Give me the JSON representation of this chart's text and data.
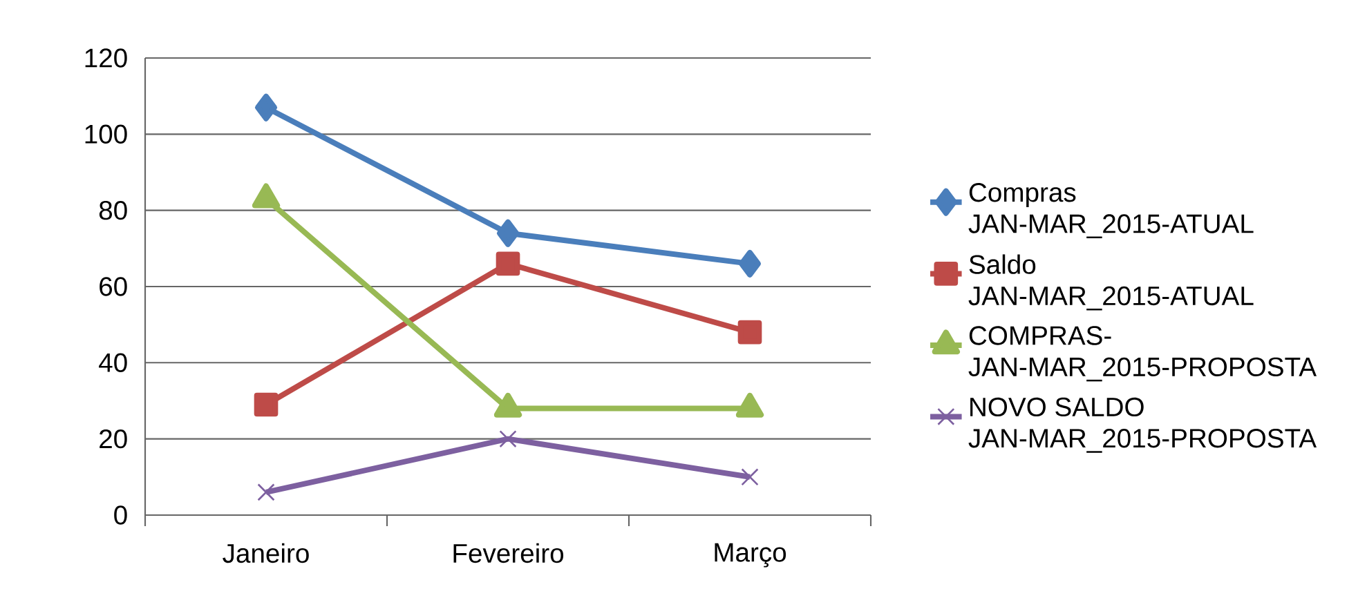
{
  "chart_data": {
    "type": "line",
    "categories": [
      "Janeiro",
      "Fevereiro",
      "Março"
    ],
    "series": [
      {
        "name": "Compras JAN-MAR_2015-ATUAL",
        "color": "#4a7ebb",
        "marker": "diamond",
        "values": [
          107,
          74,
          66
        ]
      },
      {
        "name": "Saldo JAN-MAR_2015-ATUAL",
        "color": "#be4b48",
        "marker": "square",
        "values": [
          29,
          66,
          48
        ]
      },
      {
        "name": "COMPRAS- JAN-MAR_2015-PROPOSTA",
        "color": "#98b954",
        "marker": "triangle",
        "values": [
          83,
          28,
          28
        ]
      },
      {
        "name": "NOVO SALDO JAN-MAR_2015-PROPOSTA",
        "color": "#7d60a0",
        "marker": "cross",
        "values": [
          6,
          20,
          10
        ]
      }
    ],
    "ylim": [
      0,
      120
    ],
    "yticks": [
      0,
      20,
      40,
      60,
      80,
      100,
      120
    ],
    "grid": "y",
    "legend": "right",
    "line_style": "solid"
  }
}
